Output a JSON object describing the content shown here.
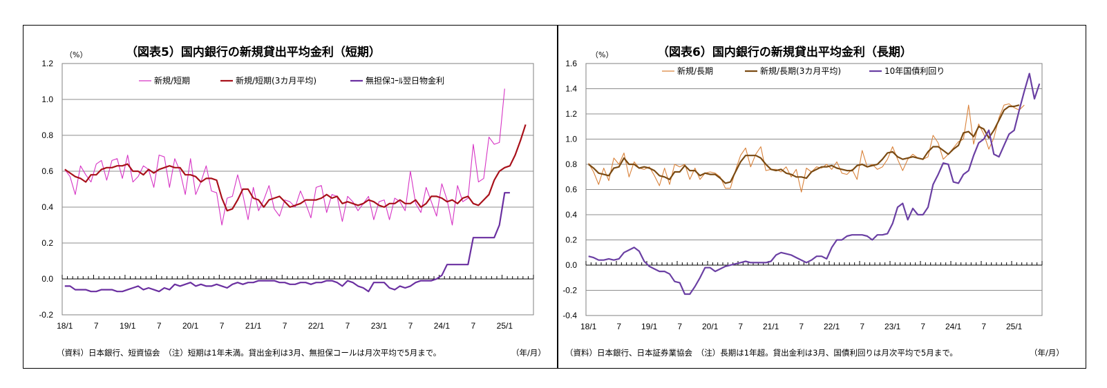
{
  "chart_data": [
    {
      "type": "line",
      "title": "（図表5）国内銀行の新規貸出平均金利（短期）",
      "yunit": "（%）",
      "ylim": [
        -0.2,
        1.2
      ],
      "yticks": [
        "1.2",
        "1.0",
        "0.8",
        "0.6",
        "0.4",
        "0.2",
        "0.0",
        "-0.2"
      ],
      "xticks": [
        "18/1",
        "7",
        "19/1",
        "7",
        "20/1",
        "7",
        "21/1",
        "7",
        "22/1",
        "7",
        "23/1",
        "7",
        "24/1",
        "7",
        "25/1"
      ],
      "xunit": "（年/月）",
      "note": "（資料）日本銀行、短資協会　（注）短期は1年未満。貸出金利は3月、無担保コールは月次平均で5月まで。",
      "legend_position": "top",
      "series": [
        {
          "name": "新規/短期",
          "color": "#d633c4",
          "values": [
            0.61,
            0.57,
            0.47,
            0.63,
            0.58,
            0.54,
            0.64,
            0.66,
            0.55,
            0.66,
            0.67,
            0.56,
            0.69,
            0.54,
            0.57,
            0.63,
            0.61,
            0.51,
            0.69,
            0.68,
            0.51,
            0.67,
            0.6,
            0.47,
            0.67,
            0.47,
            0.54,
            0.63,
            0.49,
            0.48,
            0.3,
            0.45,
            0.46,
            0.58,
            0.47,
            0.33,
            0.51,
            0.38,
            0.44,
            0.52,
            0.39,
            0.35,
            0.44,
            0.43,
            0.4,
            0.49,
            0.42,
            0.34,
            0.51,
            0.52,
            0.37,
            0.47,
            0.46,
            0.32,
            0.46,
            0.43,
            0.38,
            0.42,
            0.46,
            0.33,
            0.43,
            0.44,
            0.33,
            0.45,
            0.43,
            0.38,
            0.6,
            0.42,
            0.37,
            0.51,
            0.43,
            0.35,
            0.53,
            0.44,
            0.3,
            0.52,
            0.43,
            0.45,
            0.75,
            0.54,
            0.56,
            0.79,
            0.75,
            0.76,
            1.06
          ]
        },
        {
          "name": "新規/短期(3カ月平均)",
          "color": "#a8101a",
          "values": [
            0.61,
            0.59,
            0.57,
            0.56,
            0.54,
            0.58,
            0.58,
            0.61,
            0.62,
            0.62,
            0.63,
            0.63,
            0.64,
            0.6,
            0.6,
            0.58,
            0.61,
            0.59,
            0.61,
            0.62,
            0.63,
            0.62,
            0.62,
            0.58,
            0.58,
            0.57,
            0.54,
            0.56,
            0.56,
            0.55,
            0.45,
            0.38,
            0.39,
            0.44,
            0.5,
            0.5,
            0.45,
            0.44,
            0.4,
            0.44,
            0.45,
            0.46,
            0.43,
            0.4,
            0.41,
            0.42,
            0.44,
            0.44,
            0.44,
            0.45,
            0.47,
            0.45,
            0.46,
            0.42,
            0.43,
            0.42,
            0.41,
            0.42,
            0.44,
            0.43,
            0.41,
            0.4,
            0.42,
            0.42,
            0.44,
            0.42,
            0.42,
            0.44,
            0.4,
            0.42,
            0.46,
            0.46,
            0.45,
            0.43,
            0.44,
            0.42,
            0.45,
            0.46,
            0.42,
            0.41,
            0.44,
            0.47,
            0.55,
            0.6,
            0.62,
            0.63,
            0.69,
            0.77,
            0.86
          ]
        },
        {
          "name": "無担保ｺｰﾙ翌日物金利",
          "color": "#6a2fa0",
          "values": [
            -0.04,
            -0.04,
            -0.06,
            -0.06,
            -0.06,
            -0.07,
            -0.07,
            -0.06,
            -0.06,
            -0.06,
            -0.07,
            -0.07,
            -0.06,
            -0.05,
            -0.04,
            -0.06,
            -0.05,
            -0.06,
            -0.07,
            -0.05,
            -0.06,
            -0.03,
            -0.04,
            -0.03,
            -0.02,
            -0.04,
            -0.03,
            -0.04,
            -0.04,
            -0.03,
            -0.04,
            -0.05,
            -0.03,
            -0.02,
            -0.03,
            -0.02,
            -0.02,
            -0.01,
            -0.01,
            -0.01,
            -0.01,
            -0.02,
            -0.02,
            -0.03,
            -0.03,
            -0.02,
            -0.02,
            -0.03,
            -0.02,
            -0.02,
            -0.01,
            -0.01,
            -0.02,
            -0.04,
            -0.01,
            -0.02,
            -0.04,
            -0.05,
            -0.07,
            -0.02,
            -0.02,
            -0.02,
            -0.05,
            -0.06,
            -0.04,
            -0.05,
            -0.04,
            -0.02,
            -0.01,
            -0.01,
            -0.01,
            0.0,
            0.02,
            0.08,
            0.08,
            0.08,
            0.08,
            0.08,
            0.23,
            0.23,
            0.23,
            0.23,
            0.23,
            0.3,
            0.48,
            0.48
          ]
        }
      ]
    },
    {
      "type": "line",
      "title": "（図表6）国内銀行の新規貸出平均金利（長期）",
      "yunit": "（%）",
      "ylim": [
        -0.4,
        1.6
      ],
      "yticks": [
        "1.6",
        "1.4",
        "1.2",
        "1.0",
        "0.8",
        "0.6",
        "0.4",
        "0.2",
        "0.0",
        "-0.2",
        "-0.4"
      ],
      "xticks": [
        "18/1",
        "7",
        "19/1",
        "7",
        "20/1",
        "7",
        "21/1",
        "7",
        "22/1",
        "7",
        "23/1",
        "7",
        "24/1",
        "7",
        "25/1"
      ],
      "xunit": "（年/月）",
      "note": "（資料）日本銀行、日本証券業協会　（注）長期は1年超。貸出金利は3月、国債利回りは月次平均で5月まで。",
      "legend_position": "top",
      "series": [
        {
          "name": "新規/長期",
          "color": "#d9823a",
          "values": [
            0.81,
            0.74,
            0.64,
            0.77,
            0.67,
            0.85,
            0.8,
            0.89,
            0.7,
            0.82,
            0.77,
            0.76,
            0.78,
            0.71,
            0.63,
            0.77,
            0.64,
            0.8,
            0.78,
            0.8,
            0.68,
            0.77,
            0.68,
            0.73,
            0.74,
            0.73,
            0.7,
            0.61,
            0.61,
            0.75,
            0.87,
            0.93,
            0.78,
            0.88,
            0.94,
            0.75,
            0.76,
            0.76,
            0.74,
            0.78,
            0.7,
            0.76,
            0.58,
            0.77,
            0.74,
            0.78,
            0.77,
            0.8,
            0.76,
            0.82,
            0.73,
            0.72,
            0.76,
            0.68,
            0.91,
            0.78,
            0.8,
            0.76,
            0.78,
            0.84,
            0.94,
            0.84,
            0.75,
            0.84,
            0.88,
            0.85,
            0.84,
            0.86,
            1.03,
            0.97,
            0.84,
            0.88,
            0.93,
            0.98,
            1.0,
            1.27,
            0.96,
            1.12,
            1.04,
            0.92,
            1.01,
            1.17,
            1.27,
            1.28,
            1.25,
            1.23,
            1.27
          ]
        },
        {
          "name": "新規/長期(3カ月平均)",
          "color": "#7a4a12",
          "values": [
            0.8,
            0.77,
            0.73,
            0.72,
            0.71,
            0.77,
            0.78,
            0.85,
            0.8,
            0.8,
            0.77,
            0.78,
            0.77,
            0.75,
            0.71,
            0.7,
            0.68,
            0.74,
            0.74,
            0.79,
            0.75,
            0.75,
            0.71,
            0.73,
            0.72,
            0.72,
            0.69,
            0.65,
            0.66,
            0.74,
            0.82,
            0.87,
            0.87,
            0.87,
            0.85,
            0.8,
            0.76,
            0.75,
            0.76,
            0.73,
            0.72,
            0.7,
            0.7,
            0.69,
            0.74,
            0.76,
            0.78,
            0.78,
            0.79,
            0.77,
            0.76,
            0.75,
            0.75,
            0.79,
            0.8,
            0.78,
            0.79,
            0.8,
            0.84,
            0.89,
            0.9,
            0.86,
            0.84,
            0.85,
            0.86,
            0.85,
            0.84,
            0.9,
            0.94,
            0.94,
            0.91,
            0.88,
            0.92,
            0.95,
            1.05,
            1.06,
            1.02,
            1.1,
            1.08,
            1.01,
            1.07,
            1.15,
            1.23,
            1.26,
            1.26,
            1.27
          ]
        },
        {
          "name": "10年国債利回り",
          "color": "#6a3fa3",
          "values": [
            0.07,
            0.06,
            0.04,
            0.04,
            0.05,
            0.04,
            0.05,
            0.1,
            0.12,
            0.14,
            0.11,
            0.03,
            -0.01,
            -0.03,
            -0.05,
            -0.05,
            -0.07,
            -0.13,
            -0.14,
            -0.23,
            -0.23,
            -0.17,
            -0.1,
            -0.02,
            -0.02,
            -0.05,
            -0.03,
            -0.01,
            0.0,
            0.01,
            0.02,
            0.03,
            0.02,
            0.02,
            0.02,
            0.02,
            0.03,
            0.08,
            0.1,
            0.09,
            0.08,
            0.06,
            0.04,
            0.02,
            0.04,
            0.07,
            0.07,
            0.05,
            0.14,
            0.2,
            0.2,
            0.23,
            0.24,
            0.24,
            0.24,
            0.23,
            0.2,
            0.24,
            0.24,
            0.25,
            0.33,
            0.46,
            0.49,
            0.36,
            0.45,
            0.4,
            0.4,
            0.46,
            0.64,
            0.72,
            0.81,
            0.8,
            0.66,
            0.65,
            0.72,
            0.75,
            0.87,
            0.97,
            1.0,
            1.07,
            0.88,
            0.86,
            0.95,
            1.04,
            1.07,
            1.23,
            1.38,
            1.52,
            1.32,
            1.44
          ]
        }
      ]
    }
  ]
}
